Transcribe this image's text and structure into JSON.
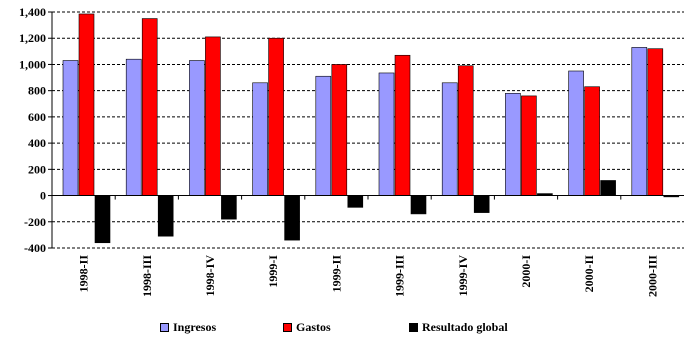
{
  "chart_data": {
    "type": "bar",
    "categories": [
      "1998-II",
      "1998-III",
      "1998-IV",
      "1999-I",
      "1999-II",
      "1999-III",
      "1999-IV",
      "2000-I",
      "2000-II",
      "2000-III"
    ],
    "series": [
      {
        "name": "Ingresos",
        "color": "#9999FF",
        "values": [
          1030,
          1040,
          1030,
          860,
          910,
          935,
          860,
          780,
          950,
          1130
        ]
      },
      {
        "name": "Gastos",
        "color": "#FF0000",
        "values": [
          1385,
          1350,
          1210,
          1200,
          1000,
          1070,
          990,
          760,
          830,
          1120
        ]
      },
      {
        "name": "Resultado global",
        "color": "#000000",
        "values": [
          -360,
          -310,
          -180,
          -340,
          -90,
          -140,
          -130,
          15,
          115,
          -10
        ]
      }
    ],
    "ylim": [
      -400,
      1400
    ],
    "yticks": [
      -400,
      -200,
      0,
      200,
      400,
      600,
      800,
      1000,
      1200,
      1400
    ],
    "ytick_labels": [
      "-400",
      "-200",
      "0",
      "200",
      "400",
      "600",
      "800",
      "1,000",
      "1,200",
      "1,400"
    ],
    "grid": true,
    "legend_position": "bottom",
    "title": "",
    "xlabel": "",
    "ylabel": ""
  }
}
